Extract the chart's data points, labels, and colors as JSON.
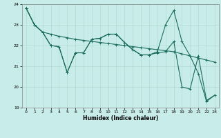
{
  "xlabel": "Humidex (Indice chaleur)",
  "background_color": "#c8ecea",
  "grid_color": "#aad8d0",
  "line_color": "#1a6b5a",
  "xlim": [
    -0.5,
    23.5
  ],
  "ylim": [
    19,
    24
  ],
  "yticks": [
    19,
    20,
    21,
    22,
    23,
    24
  ],
  "xticks": [
    0,
    1,
    2,
    3,
    4,
    5,
    6,
    7,
    8,
    9,
    10,
    11,
    12,
    13,
    14,
    15,
    16,
    17,
    18,
    19,
    20,
    21,
    22,
    23
  ],
  "line1_y": [
    23.8,
    23.0,
    22.65,
    22.55,
    22.45,
    22.38,
    22.3,
    22.25,
    22.2,
    22.15,
    22.1,
    22.05,
    22.0,
    21.95,
    21.9,
    21.85,
    21.8,
    21.75,
    21.7,
    21.6,
    21.5,
    21.4,
    21.3,
    21.2
  ],
  "line2_y": [
    23.8,
    23.0,
    22.65,
    22.0,
    21.95,
    20.7,
    21.65,
    21.65,
    22.3,
    22.35,
    22.55,
    22.55,
    22.15,
    21.8,
    21.55,
    21.55,
    21.7,
    23.0,
    23.7,
    22.2,
    21.5,
    20.65,
    19.3,
    19.6
  ],
  "line3_y": [
    23.8,
    23.0,
    22.65,
    22.0,
    21.95,
    20.7,
    21.65,
    21.65,
    22.3,
    22.35,
    22.55,
    22.55,
    22.15,
    21.8,
    21.55,
    21.55,
    21.65,
    21.7,
    22.2,
    20.0,
    19.9,
    21.5,
    19.35,
    19.6
  ],
  "lw": 0.8,
  "ms": 2.5,
  "mew": 0.7,
  "xlabel_fontsize": 5.5,
  "tick_fontsize": 4.5
}
